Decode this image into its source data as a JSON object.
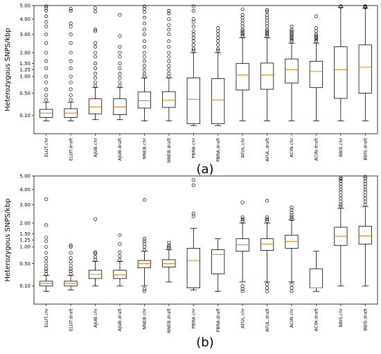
{
  "chart_data": [
    {
      "type": "box",
      "panel_label": "(a)",
      "ylabel": "Heterozygous SNPS/kbp",
      "yscale": "sqrt",
      "ylim": [
        0,
        5
      ],
      "yticks": [
        0.1,
        0.5,
        1.0,
        1.25,
        1.5,
        2.0,
        3.0,
        4.0,
        5.0
      ],
      "ytick_labels": [
        "0.10",
        "0.50",
        "1.00",
        "1.25",
        "1.50",
        "2.00",
        "3.00",
        "4.00",
        "5.00"
      ],
      "grid": false,
      "categories": [
        "ELUT.chr",
        "ELUT.draft",
        "AJUB.chr",
        "AJUB.draft",
        "NNEB.chr",
        "NNEB.draft",
        "PBRA.chr",
        "PBRA.draft",
        "AFUL.chr",
        "AFUL.draft",
        "ACIN.chr",
        "ACIN.draft",
        "BBIS.chr",
        "BBIS.draft"
      ],
      "boxes": [
        {
          "whislo": 0.05,
          "q1": 0.08,
          "med": 0.13,
          "q3": 0.18,
          "whishi": 0.3,
          "fliers": [
            0.35,
            0.45,
            0.6,
            0.8,
            1.0,
            1.3,
            1.6,
            2.0,
            2.5,
            3.0,
            3.5,
            3.8,
            4.2,
            4.6,
            4.8,
            4.95
          ]
        },
        {
          "whislo": 0.05,
          "q1": 0.08,
          "med": 0.13,
          "q3": 0.19,
          "whishi": 0.3,
          "fliers": [
            0.35,
            0.45,
            0.6,
            0.8,
            1.0,
            1.3,
            1.6,
            2.0,
            2.5,
            3.0,
            3.5,
            3.7,
            4.6,
            4.75
          ]
        },
        {
          "whislo": 0.06,
          "q1": 0.12,
          "med": 0.22,
          "q3": 0.37,
          "whishi": 0.65,
          "fliers": [
            0.7,
            0.8,
            0.95,
            1.1,
            1.3,
            1.5,
            1.8,
            2.0,
            2.3,
            2.5,
            3.2,
            3.3,
            4.55,
            4.8
          ]
        },
        {
          "whislo": 0.06,
          "q1": 0.11,
          "med": 0.22,
          "q3": 0.37,
          "whishi": 0.65,
          "fliers": [
            0.7,
            0.8,
            0.95,
            1.1,
            1.3,
            1.5,
            1.8,
            2.0,
            2.3,
            2.9,
            4.3
          ]
        },
        {
          "whislo": 0.05,
          "q1": 0.2,
          "med": 0.33,
          "q3": 0.53,
          "whishi": 0.95,
          "fliers": [
            1.0,
            1.1,
            1.25,
            1.4,
            1.6,
            1.8,
            2.0,
            2.3,
            2.6,
            3.0,
            3.3,
            3.7,
            4.1,
            4.5,
            4.75,
            4.95
          ]
        },
        {
          "whislo": 0.05,
          "q1": 0.21,
          "med": 0.34,
          "q3": 0.54,
          "whishi": 0.95,
          "fliers": [
            1.0,
            1.1,
            1.25,
            1.4,
            1.6,
            1.8,
            2.0,
            2.3,
            2.6,
            3.0,
            3.3,
            3.6,
            4.0,
            4.4,
            4.6
          ]
        },
        {
          "whislo": 0.02,
          "q1": 0.03,
          "med": 0.36,
          "q3": 0.95,
          "whishi": 2.0,
          "fliers": [
            2.1,
            2.2,
            2.4,
            2.6,
            2.8,
            3.0,
            3.2,
            3.5,
            3.8,
            4.0,
            4.6,
            4.95
          ]
        },
        {
          "whislo": 0.02,
          "q1": 0.03,
          "med": 0.35,
          "q3": 0.92,
          "whishi": 2.0,
          "fliers": [
            2.1,
            2.2,
            2.4,
            2.6,
            2.8,
            3.0,
            3.2,
            3.4
          ]
        },
        {
          "whislo": 0.05,
          "q1": 0.58,
          "med": 1.05,
          "q3": 1.5,
          "whishi": 2.8,
          "fliers": [
            2.9,
            3.0,
            3.1,
            3.2,
            3.3,
            3.5,
            3.7,
            3.9,
            4.1,
            4.3,
            4.7
          ]
        },
        {
          "whislo": 0.05,
          "q1": 0.6,
          "med": 1.05,
          "q3": 1.52,
          "whishi": 2.8,
          "fliers": [
            2.9,
            3.0,
            3.1,
            3.2,
            3.3,
            3.5,
            3.7,
            3.9,
            4.1,
            4.3,
            4.55,
            4.65
          ]
        },
        {
          "whislo": 0.05,
          "q1": 0.78,
          "med": 1.25,
          "q3": 1.7,
          "whishi": 2.5,
          "fliers": [
            2.6,
            2.7,
            2.8,
            2.9,
            3.0,
            3.1,
            3.2,
            3.3,
            3.5
          ]
        },
        {
          "whislo": 0.05,
          "q1": 0.65,
          "med": 1.18,
          "q3": 1.6,
          "whishi": 2.5,
          "fliers": [
            2.6,
            2.7,
            2.8,
            2.9,
            3.0,
            3.2,
            3.4,
            4.2
          ]
        },
        {
          "whislo": 0.05,
          "q1": 0.38,
          "med": 1.25,
          "q3": 2.3,
          "whishi": 4.85,
          "fliers": [
            4.9,
            4.95,
            5.0
          ]
        },
        {
          "whislo": 0.05,
          "q1": 0.5,
          "med": 1.35,
          "q3": 2.4,
          "whishi": 4.8,
          "fliers": [
            4.85,
            4.9,
            4.95,
            5.0
          ]
        }
      ],
      "colors": {
        "box": "#000000",
        "median": "#ff7f0e"
      }
    },
    {
      "type": "box",
      "panel_label": "(b)",
      "ylabel": "Heterozygous SNPS/kbp",
      "yscale": "sqrt",
      "ylim": [
        0,
        5
      ],
      "yticks": [
        0.1,
        0.5,
        1.0,
        1.25,
        1.5,
        2.0,
        3.0,
        4.0,
        5.0
      ],
      "ytick_labels": [
        "0.10",
        "0.50",
        "1.00",
        "1.25",
        "1.50",
        "2.00",
        "3.00",
        "4.00",
        "5.00"
      ],
      "grid": false,
      "categories": [
        "ELUT.chr",
        "ELUT.draft",
        "AJUB.chr",
        "AJUB.draft",
        "NNEB.chr",
        "NNEB.draft",
        "PBRA.chr",
        "PBRA.draft",
        "AFUL.chr",
        "AFUL.draft",
        "ACIN.chr",
        "ACIN.draft",
        "BBIS.chr",
        "BBIS.draft"
      ],
      "boxes": [
        {
          "whislo": 0.05,
          "q1": 0.1,
          "med": 0.13,
          "q3": 0.16,
          "whishi": 0.25,
          "fliers": [
            0.28,
            0.33,
            0.38,
            0.45,
            0.55,
            0.65,
            0.8,
            1.0,
            1.2,
            1.35,
            1.9,
            3.35
          ]
        },
        {
          "whislo": 0.06,
          "q1": 0.1,
          "med": 0.13,
          "q3": 0.16,
          "whishi": 0.25,
          "fliers": [
            0.28,
            0.33,
            0.38,
            0.45,
            0.55,
            0.65,
            0.8,
            1.0,
            1.05
          ]
        },
        {
          "whislo": 0.1,
          "q1": 0.2,
          "med": 0.27,
          "q3": 0.35,
          "whishi": 0.55,
          "fliers": [
            0.6,
            0.68,
            0.78,
            0.82,
            2.2
          ]
        },
        {
          "whislo": 0.1,
          "q1": 0.2,
          "med": 0.26,
          "q3": 0.35,
          "whishi": 0.55,
          "fliers": [
            0.6,
            0.7,
            0.82,
            1.1,
            1.45
          ]
        },
        {
          "whislo": 0.1,
          "q1": 0.4,
          "med": 0.5,
          "q3": 0.58,
          "whishi": 0.85,
          "fliers": [
            0.05,
            0.07,
            0.9,
            1.0,
            1.1,
            1.2,
            1.3,
            3.3
          ]
        },
        {
          "whislo": 0.15,
          "q1": 0.42,
          "med": 0.5,
          "q3": 0.6,
          "whishi": 0.9,
          "fliers": [
            0.95,
            1.0,
            1.05,
            1.15
          ]
        },
        {
          "whislo": 0.06,
          "q1": 0.08,
          "med": 0.58,
          "q3": 0.95,
          "whishi": 1.75,
          "fliers": [
            2.35,
            2.5,
            4.3,
            4.7
          ]
        },
        {
          "whislo": 0.05,
          "q1": 0.28,
          "med": 0.75,
          "q3": 0.9,
          "whishi": 1.3,
          "fliers": []
        },
        {
          "whislo": 0.15,
          "q1": 0.85,
          "med": 1.07,
          "q3": 1.3,
          "whishi": 2.0,
          "fliers": [
            0.05,
            0.07,
            0.1,
            2.1,
            2.2,
            2.3,
            3.15
          ]
        },
        {
          "whislo": 0.15,
          "q1": 0.88,
          "med": 1.1,
          "q3": 1.3,
          "whishi": 2.0,
          "fliers": [
            0.05,
            0.08,
            0.12,
            2.1,
            2.2,
            2.3,
            3.25
          ]
        },
        {
          "whislo": 0.15,
          "q1": 0.95,
          "med": 1.2,
          "q3": 1.45,
          "whishi": 2.15,
          "fliers": [
            0.05,
            0.08,
            0.12,
            2.2,
            2.3,
            2.4,
            2.55,
            2.7,
            2.85
          ]
        },
        {
          "whislo": 0.05,
          "q1": 0.08,
          "med": 0.08,
          "q3": 0.38,
          "whishi": 0.85,
          "fliers": []
        },
        {
          "whislo": 0.1,
          "q1": 1.05,
          "med": 1.4,
          "q3": 1.8,
          "whishi": 2.8,
          "fliers": [
            2.9,
            3.0,
            3.2,
            3.4,
            3.6,
            3.8,
            4.0,
            4.2,
            4.4,
            4.6,
            4.75,
            4.85
          ]
        },
        {
          "whislo": 0.1,
          "q1": 1.1,
          "med": 1.42,
          "q3": 1.85,
          "whishi": 2.9,
          "fliers": [
            3.0,
            3.2,
            3.4,
            3.6,
            3.8,
            4.0,
            4.2,
            4.4,
            4.6,
            4.8,
            4.95
          ]
        }
      ],
      "colors": {
        "box": "#000000",
        "median": "#ff7f0e"
      }
    }
  ]
}
